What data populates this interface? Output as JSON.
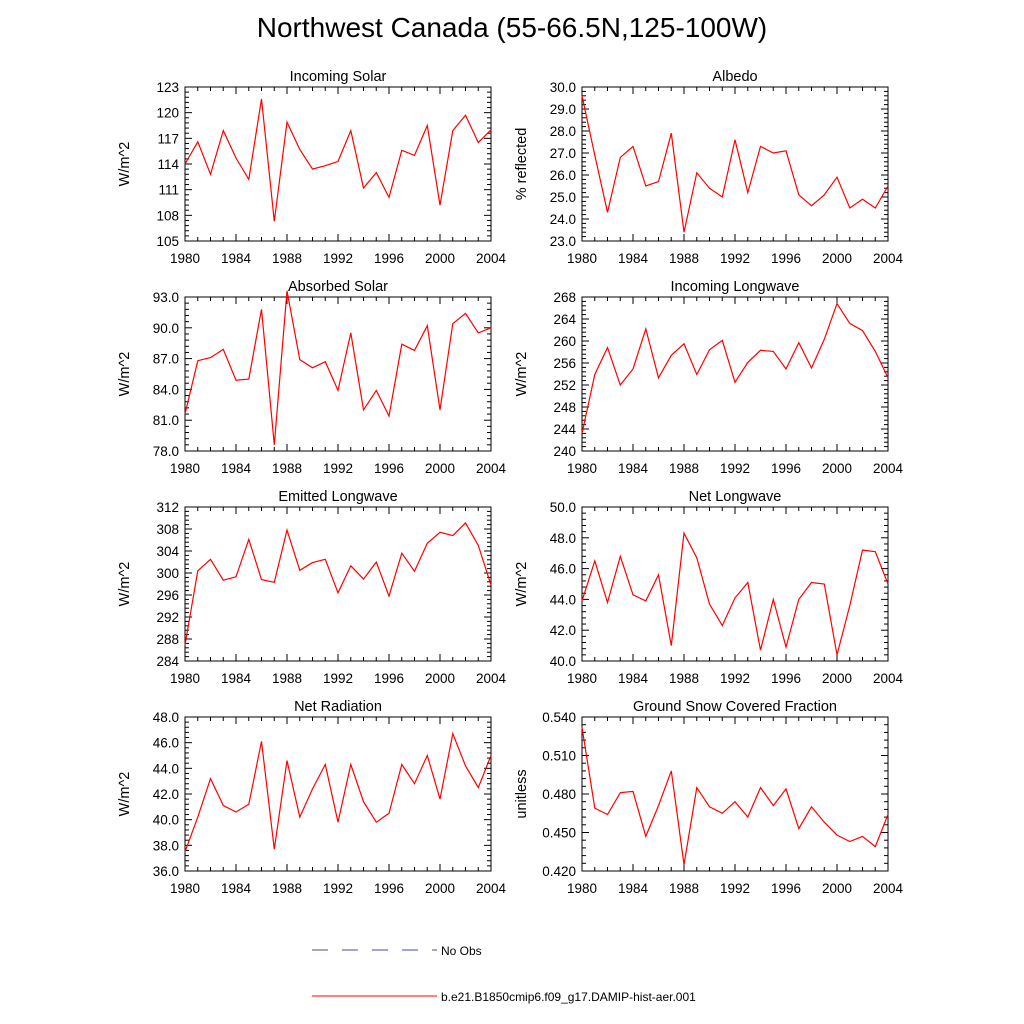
{
  "title": "Northwest Canada (55-66.5N,125-100W)",
  "colors": {
    "model": "#ff0000",
    "obs": "#4a4aa8",
    "axis": "#000000"
  },
  "legend": {
    "obs_label": "No Obs",
    "model_label": "b.e21.B1850cmip6.f09_g17.DAMIP-hist-aer.001"
  },
  "chart_data": [
    {
      "type": "line",
      "title": "Incoming Solar",
      "ylabel": "W/m^2",
      "xlim": [
        1980,
        2004
      ],
      "ylim": [
        105,
        123
      ],
      "x_ticks": [
        "1980",
        "1984",
        "1988",
        "1992",
        "1996",
        "2000",
        "2004"
      ],
      "y_ticks": [
        "105",
        "108",
        "111",
        "114",
        "117",
        "120",
        "123"
      ],
      "x": [
        1980,
        1981,
        1982,
        1983,
        1984,
        1985,
        1986,
        1987,
        1988,
        1989,
        1990,
        1991,
        1992,
        1993,
        1994,
        1995,
        1996,
        1997,
        1998,
        1999,
        2000,
        2001,
        2002,
        2003,
        2004
      ],
      "series": [
        {
          "values": [
            114.0,
            116.6,
            112.8,
            117.9,
            114.7,
            112.2,
            121.6,
            107.3,
            118.9,
            115.7,
            113.4,
            113.8,
            114.3,
            117.9,
            111.2,
            113.0,
            110.1,
            115.6,
            115.0,
            118.5,
            109.2,
            117.9,
            119.7,
            116.5,
            118.0
          ]
        }
      ]
    },
    {
      "type": "line",
      "title": "Albedo",
      "ylabel": "% reflected",
      "xlim": [
        1980,
        2004
      ],
      "ylim": [
        23.0,
        30.0
      ],
      "x_ticks": [
        "1980",
        "1984",
        "1988",
        "1992",
        "1996",
        "2000",
        "2004"
      ],
      "y_ticks": [
        "23.0",
        "24.0",
        "25.0",
        "26.0",
        "27.0",
        "28.0",
        "29.0",
        "30.0"
      ],
      "x": [
        1980,
        1981,
        1982,
        1983,
        1984,
        1985,
        1986,
        1987,
        1988,
        1989,
        1990,
        1991,
        1992,
        1993,
        1994,
        1995,
        1996,
        1997,
        1998,
        1999,
        2000,
        2001,
        2002,
        2003,
        2004
      ],
      "series": [
        {
          "values": [
            29.6,
            26.9,
            24.3,
            26.8,
            27.3,
            25.5,
            25.7,
            27.9,
            23.4,
            26.1,
            25.4,
            25.0,
            27.6,
            25.2,
            27.3,
            27.0,
            27.1,
            25.1,
            24.6,
            25.1,
            25.9,
            24.5,
            24.9,
            24.5,
            25.5
          ]
        }
      ]
    },
    {
      "type": "line",
      "title": "Absorbed Solar",
      "ylabel": "W/m^2",
      "xlim": [
        1980,
        2004
      ],
      "ylim": [
        78.0,
        93.0
      ],
      "x_ticks": [
        "1980",
        "1984",
        "1988",
        "1992",
        "1996",
        "2000",
        "2004"
      ],
      "y_ticks": [
        "78.0",
        "81.0",
        "84.0",
        "87.0",
        "90.0",
        "93.0"
      ],
      "x": [
        1980,
        1981,
        1982,
        1983,
        1984,
        1985,
        1986,
        1987,
        1988,
        1989,
        1990,
        1991,
        1992,
        1993,
        1994,
        1995,
        1996,
        1997,
        1998,
        1999,
        2000,
        2001,
        2002,
        2003,
        2004
      ],
      "series": [
        {
          "values": [
            81.6,
            86.8,
            87.1,
            87.9,
            84.9,
            85.0,
            91.8,
            78.6,
            93.6,
            86.9,
            86.1,
            86.7,
            83.9,
            89.5,
            82.0,
            83.9,
            81.4,
            88.4,
            87.8,
            90.2,
            82.0,
            90.4,
            91.4,
            89.5,
            90.0
          ]
        }
      ]
    },
    {
      "type": "line",
      "title": "Incoming Longwave",
      "ylabel": "W/m^2",
      "xlim": [
        1980,
        2004
      ],
      "ylim": [
        240,
        268
      ],
      "x_ticks": [
        "1980",
        "1984",
        "1988",
        "1992",
        "1996",
        "2000",
        "2004"
      ],
      "y_ticks": [
        "240",
        "244",
        "248",
        "252",
        "256",
        "260",
        "264",
        "268"
      ],
      "x": [
        1980,
        1981,
        1982,
        1983,
        1984,
        1985,
        1986,
        1987,
        1988,
        1989,
        1990,
        1991,
        1992,
        1993,
        1994,
        1995,
        1996,
        1997,
        1998,
        1999,
        2000,
        2001,
        2002,
        2003,
        2004
      ],
      "series": [
        {
          "values": [
            243.2,
            253.9,
            258.8,
            252.0,
            254.9,
            262.2,
            253.3,
            257.4,
            259.5,
            253.9,
            258.4,
            260.1,
            252.5,
            256.1,
            258.3,
            258.1,
            254.9,
            259.7,
            255.1,
            260.3,
            266.8,
            263.2,
            261.9,
            258.1,
            253.3
          ]
        }
      ]
    },
    {
      "type": "line",
      "title": "Emitted Longwave",
      "ylabel": "W/m^2",
      "xlim": [
        1980,
        2004
      ],
      "ylim": [
        284,
        312
      ],
      "x_ticks": [
        "1980",
        "1984",
        "1988",
        "1992",
        "1996",
        "2000",
        "2004"
      ],
      "y_ticks": [
        "284",
        "288",
        "292",
        "296",
        "300",
        "304",
        "308",
        "312"
      ],
      "x": [
        1980,
        1981,
        1982,
        1983,
        1984,
        1985,
        1986,
        1987,
        1988,
        1989,
        1990,
        1991,
        1992,
        1993,
        1994,
        1995,
        1996,
        1997,
        1998,
        1999,
        2000,
        2001,
        2002,
        2003,
        2004
      ],
      "series": [
        {
          "values": [
            286.9,
            300.4,
            302.5,
            298.7,
            299.3,
            306.1,
            298.8,
            298.3,
            307.8,
            300.5,
            301.9,
            302.5,
            296.4,
            301.3,
            298.9,
            302.0,
            295.8,
            303.6,
            300.3,
            305.4,
            307.4,
            306.8,
            309.1,
            305.0,
            297.8
          ]
        }
      ]
    },
    {
      "type": "line",
      "title": "Net Longwave",
      "ylabel": "W/m^2",
      "xlim": [
        1980,
        2004
      ],
      "ylim": [
        40.0,
        50.0
      ],
      "x_ticks": [
        "1980",
        "1984",
        "1988",
        "1992",
        "1996",
        "2000",
        "2004"
      ],
      "y_ticks": [
        "40.0",
        "42.0",
        "44.0",
        "46.0",
        "48.0",
        "50.0"
      ],
      "x": [
        1980,
        1981,
        1982,
        1983,
        1984,
        1985,
        1986,
        1987,
        1988,
        1989,
        1990,
        1991,
        1992,
        1993,
        1994,
        1995,
        1996,
        1997,
        1998,
        1999,
        2000,
        2001,
        2002,
        2003,
        2004
      ],
      "series": [
        {
          "values": [
            43.9,
            46.5,
            43.8,
            46.8,
            44.3,
            43.9,
            45.6,
            41.0,
            48.3,
            46.7,
            43.7,
            42.3,
            44.1,
            45.1,
            40.7,
            44.0,
            40.9,
            44.0,
            45.1,
            45.0,
            40.4,
            43.6,
            47.2,
            47.1,
            45.0
          ]
        }
      ]
    },
    {
      "type": "line",
      "title": "Net Radiation",
      "ylabel": "W/m^2",
      "xlim": [
        1980,
        2004
      ],
      "ylim": [
        36.0,
        48.0
      ],
      "x_ticks": [
        "1980",
        "1984",
        "1988",
        "1992",
        "1996",
        "2000",
        "2004"
      ],
      "y_ticks": [
        "36.0",
        "38.0",
        "40.0",
        "42.0",
        "44.0",
        "46.0",
        "48.0"
      ],
      "x": [
        1980,
        1981,
        1982,
        1983,
        1984,
        1985,
        1986,
        1987,
        1988,
        1989,
        1990,
        1991,
        1992,
        1993,
        1994,
        1995,
        1996,
        1997,
        1998,
        1999,
        2000,
        2001,
        2002,
        2003,
        2004
      ],
      "series": [
        {
          "values": [
            37.5,
            40.2,
            43.2,
            41.1,
            40.6,
            41.2,
            46.1,
            37.7,
            44.6,
            40.2,
            42.4,
            44.3,
            39.8,
            44.3,
            41.4,
            39.8,
            40.5,
            44.3,
            42.8,
            45.0,
            41.6,
            46.7,
            44.2,
            42.5,
            45.0
          ]
        }
      ]
    },
    {
      "type": "line",
      "title": "Ground Snow Covered Fraction",
      "ylabel": "unitless",
      "xlim": [
        1980,
        2004
      ],
      "ylim": [
        0.42,
        0.54
      ],
      "x_ticks": [
        "1980",
        "1984",
        "1988",
        "1992",
        "1996",
        "2000",
        "2004"
      ],
      "y_ticks": [
        "0.420",
        "0.450",
        "0.480",
        "0.510",
        "0.540"
      ],
      "x": [
        1980,
        1981,
        1982,
        1983,
        1984,
        1985,
        1986,
        1987,
        1988,
        1989,
        1990,
        1991,
        1992,
        1993,
        1994,
        1995,
        1996,
        1997,
        1998,
        1999,
        2000,
        2001,
        2002,
        2003,
        2004
      ],
      "series": [
        {
          "values": [
            0.532,
            0.469,
            0.464,
            0.481,
            0.482,
            0.447,
            0.471,
            0.498,
            0.425,
            0.485,
            0.47,
            0.465,
            0.474,
            0.462,
            0.485,
            0.471,
            0.484,
            0.453,
            0.47,
            0.458,
            0.448,
            0.443,
            0.447,
            0.439,
            0.464
          ]
        }
      ]
    }
  ]
}
